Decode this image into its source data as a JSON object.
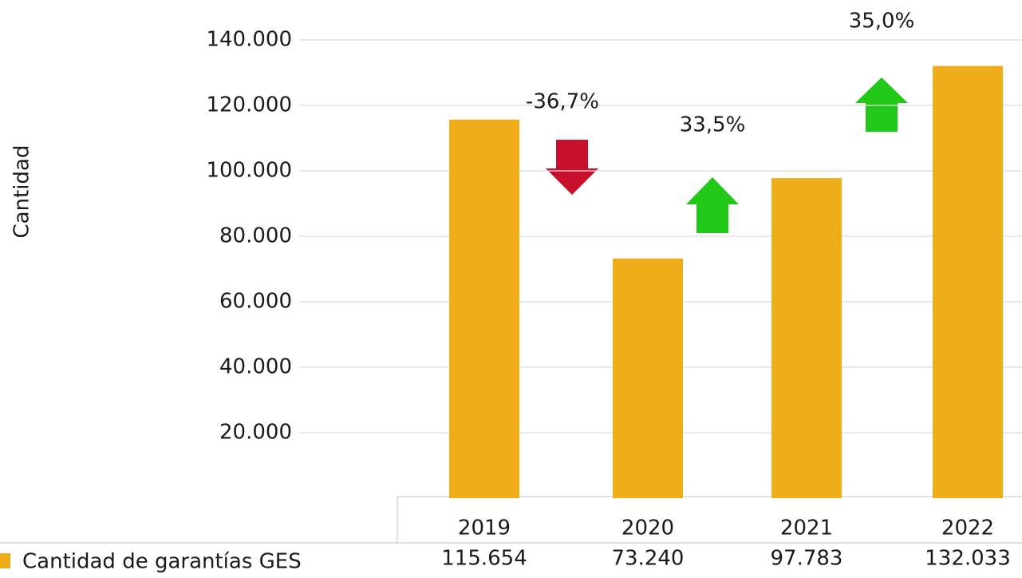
{
  "chart_data": {
    "type": "bar",
    "y_axis_label": "Cantidad",
    "categories": [
      "2019",
      "2020",
      "2021",
      "2022"
    ],
    "series": [
      {
        "name": "Cantidad de garantías GES",
        "color": "#f0ad1a",
        "values": [
          115654,
          73240,
          97783,
          132033
        ],
        "value_labels": [
          "115.654",
          "73.240",
          "97.783",
          "132.033"
        ]
      }
    ],
    "ylim": [
      0,
      140000
    ],
    "yticks": [
      {
        "value": 20000,
        "label": "20.000"
      },
      {
        "value": 40000,
        "label": "40.000"
      },
      {
        "value": 60000,
        "label": "60.000"
      },
      {
        "value": 80000,
        "label": "80.000"
      },
      {
        "value": 100000,
        "label": "100.000"
      },
      {
        "value": 120000,
        "label": "120.000"
      },
      {
        "value": 140000,
        "label": "140.000"
      }
    ],
    "grid": true,
    "annotations": [
      "-36,7%",
      "33,5%",
      "35,0%"
    ]
  }
}
